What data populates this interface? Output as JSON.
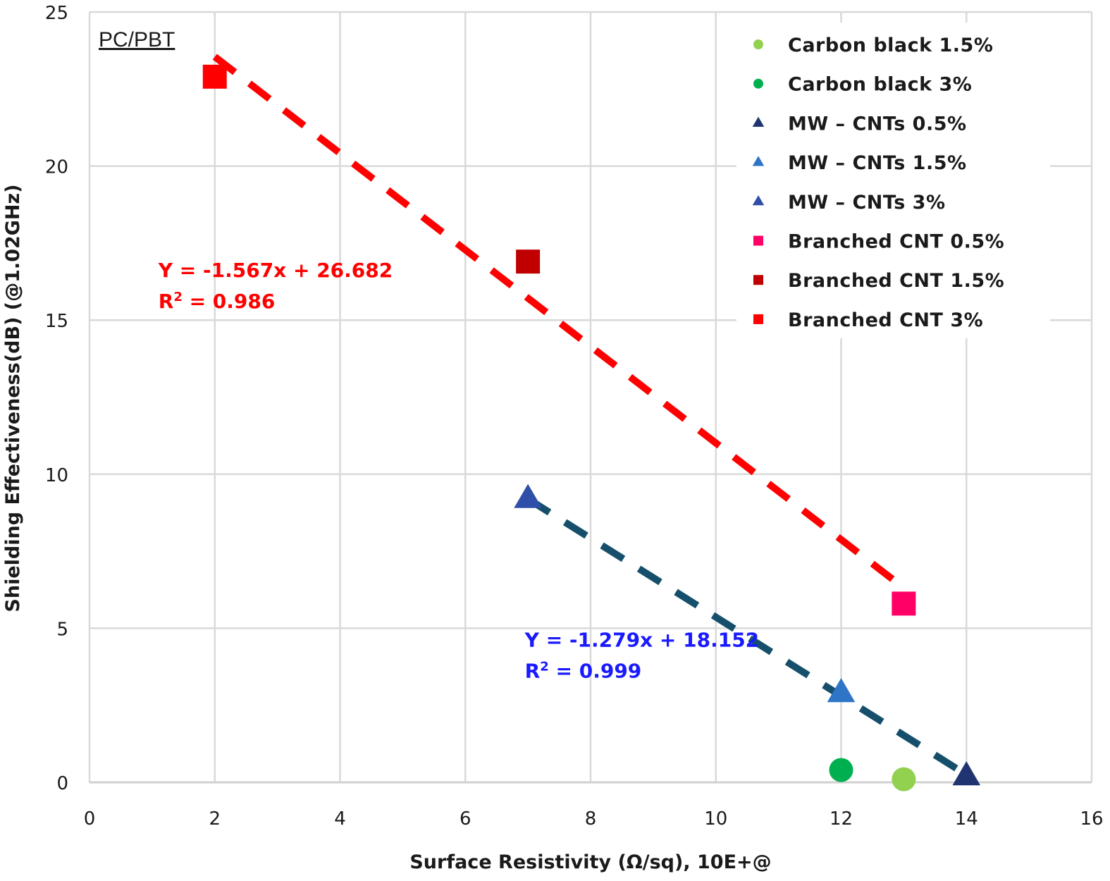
{
  "chart_data": {
    "type": "scatter",
    "title": "",
    "annotation_title": "PC/PBT",
    "xlabel": "Surface Resistivity (Ω/sq), 10E+@",
    "ylabel": "Shielding Effectiveness(dB) (@1.02GHz)",
    "xlim": [
      0,
      16
    ],
    "ylim": [
      0,
      25
    ],
    "xticks": [
      "0",
      "2",
      "4",
      "6",
      "8",
      "10",
      "12",
      "14",
      "16"
    ],
    "xtick_values": [
      0,
      2,
      4,
      6,
      8,
      10,
      12,
      14,
      16
    ],
    "yticks": [
      "0",
      "5",
      "10",
      "15",
      "20",
      "25"
    ],
    "ytick_values": [
      0,
      5,
      10,
      15,
      20,
      25
    ],
    "grid": true,
    "legend_position": "top-right",
    "series": [
      {
        "name": "Carbon black 1.5%",
        "marker": "circle",
        "color": "#92d050",
        "points": [
          [
            13,
            0.1
          ]
        ]
      },
      {
        "name": "Carbon black 3%",
        "marker": "circle",
        "color": "#00b050",
        "points": [
          [
            12,
            0.4
          ]
        ]
      },
      {
        "name": "MW – CNTs 0.5%",
        "marker": "triangle",
        "color": "#1f3470",
        "points": [
          [
            14,
            0.2
          ]
        ]
      },
      {
        "name": "MW – CNTs 1.5%",
        "marker": "triangle",
        "color": "#2e75c6",
        "points": [
          [
            12,
            2.9
          ]
        ]
      },
      {
        "name": "MW – CNTs 3%",
        "marker": "triangle",
        "color": "#2f4fa8",
        "points": [
          [
            7,
            9.2
          ]
        ]
      },
      {
        "name": "Branched CNT 0.5%",
        "marker": "square",
        "color": "#ff0066",
        "points": [
          [
            13,
            5.8
          ]
        ]
      },
      {
        "name": "Branched CNT 1.5%",
        "marker": "square",
        "color": "#c00000",
        "points": [
          [
            7,
            16.9
          ]
        ]
      },
      {
        "name": "Branched CNT 3%",
        "marker": "square",
        "color": "#ff0000",
        "points": [
          [
            2,
            22.9
          ]
        ]
      }
    ],
    "trendlines": [
      {
        "name": "Branched CNT trend",
        "slope": -1.567,
        "intercept": 26.682,
        "x_range": [
          2,
          13
        ],
        "color": "#ff0000",
        "style": "dashed",
        "equation": "Y = -1.567x + 26.682",
        "r2_label": "R",
        "r2_sup": "2",
        "r2_value": " = 0.986",
        "label_anchor": [
          1.1,
          16.4
        ]
      },
      {
        "name": "MW-CNTs trend",
        "slope": -1.279,
        "intercept": 18.152,
        "x_range": [
          7,
          14
        ],
        "color": "#154f6b",
        "style": "dashed",
        "equation": "Y = -1.279x + 18.152",
        "r2_label": "R",
        "r2_sup": "2",
        "r2_value": " = 0.999",
        "label_anchor": [
          6.95,
          4.4
        ],
        "text_color": "#1a1aff"
      }
    ]
  }
}
